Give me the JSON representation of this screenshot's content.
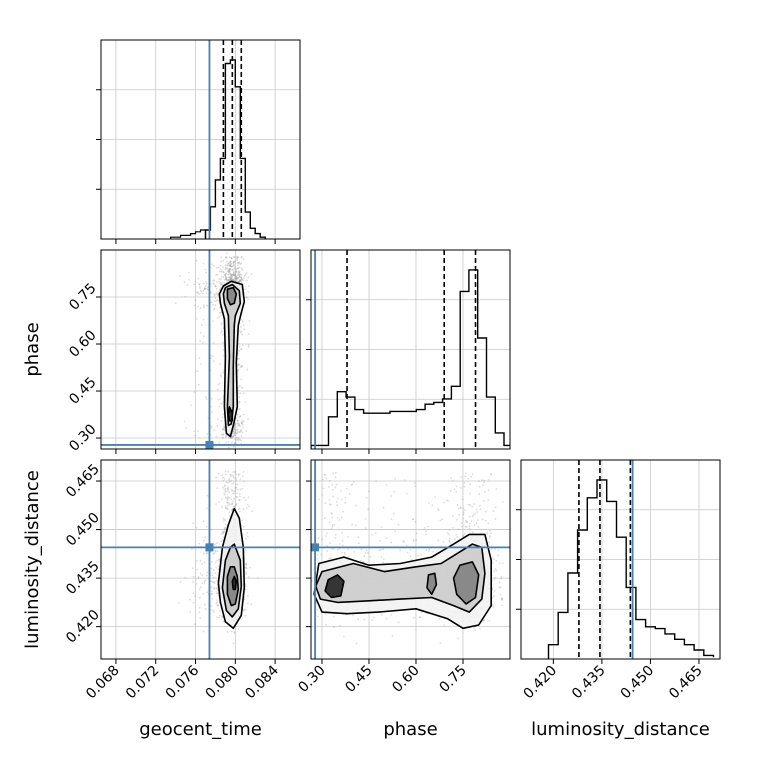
{
  "chart_data": {
    "type": "corner",
    "parameters": [
      "geocent_time",
      "phase",
      "luminosity_distance"
    ],
    "truths": {
      "geocent_time": 0.0774,
      "phase": 0.278,
      "luminosity_distance": 0.4445
    },
    "truth_color": "#4682b4",
    "quantile_lines": {
      "geocent_time": [
        0.0788,
        0.0797,
        0.0806
      ],
      "phase": [
        0.38,
        0.69,
        0.79
      ],
      "luminosity_distance": [
        0.4279,
        0.4344,
        0.4438
      ]
    },
    "axes": {
      "geocent_time": {
        "range": [
          0.0665,
          0.0865
        ],
        "ticks": [
          0.068,
          0.072,
          0.076,
          0.08,
          0.084
        ],
        "tick_labels": [
          "0.068",
          "0.072",
          "0.076",
          "0.080",
          "0.084"
        ]
      },
      "phase": {
        "range": [
          0.265,
          0.9
        ],
        "ticks": [
          0.3,
          0.45,
          0.6,
          0.75
        ],
        "tick_labels": [
          "0.30",
          "0.45",
          "0.60",
          "0.75"
        ]
      },
      "luminosity_distance": {
        "range": [
          0.41,
          0.4715
        ],
        "ticks": [
          0.42,
          0.435,
          0.45,
          0.465
        ],
        "tick_labels": [
          "0.420",
          "0.435",
          "0.450",
          "0.465"
        ]
      }
    },
    "histograms": {
      "geocent_time": {
        "edges": [
          0.077,
          0.0775,
          0.078,
          0.0785,
          0.079,
          0.0795,
          0.08,
          0.0805,
          0.081,
          0.0815,
          0.082,
          0.0825,
          0.083
        ],
        "counts": [
          5,
          18,
          33,
          45,
          98,
          100,
          85,
          45,
          15,
          6,
          3,
          1
        ],
        "left_tail": {
          "edges": [
            0.0735,
            0.074,
            0.0745,
            0.075,
            0.0755,
            0.076,
            0.0765,
            0.077
          ],
          "counts": [
            1,
            1,
            2,
            2,
            3,
            4,
            5
          ]
        }
      },
      "phase": {
        "edges": [
          0.265,
          0.293,
          0.321,
          0.349,
          0.377,
          0.405,
          0.433,
          0.461,
          0.489,
          0.517,
          0.545,
          0.573,
          0.601,
          0.629,
          0.657,
          0.685,
          0.713,
          0.741,
          0.769,
          0.797,
          0.825,
          0.853,
          0.881,
          0.909
        ],
        "counts": [
          2,
          2,
          18,
          32,
          29,
          22,
          20,
          20,
          20,
          21,
          21,
          21,
          22,
          25,
          26,
          28,
          35,
          88,
          100,
          62,
          29,
          9,
          2
        ]
      },
      "luminosity_distance": {
        "edges": [
          0.4185,
          0.4215,
          0.4245,
          0.4275,
          0.4305,
          0.4335,
          0.4365,
          0.4395,
          0.4425,
          0.4455,
          0.4485,
          0.4515,
          0.4545,
          0.4575,
          0.4605,
          0.4635,
          0.4665,
          0.4695
        ],
        "counts": [
          8,
          26,
          48,
          72,
          90,
          100,
          88,
          68,
          40,
          22,
          18,
          17,
          14,
          11,
          8,
          5,
          2,
          1
        ]
      }
    },
    "densities": [
      {
        "x": "geocent_time",
        "y": "phase",
        "contours": [
          [
            [
              0.0788,
              0.785
            ],
            [
              0.0796,
              0.8
            ],
            [
              0.0807,
              0.79
            ],
            [
              0.0809,
              0.735
            ],
            [
              0.0806,
              0.7
            ],
            [
              0.0803,
              0.66
            ],
            [
              0.0801,
              0.54
            ],
            [
              0.0802,
              0.4
            ],
            [
              0.0798,
              0.34
            ],
            [
              0.0795,
              0.305
            ],
            [
              0.0791,
              0.315
            ],
            [
              0.0789,
              0.4
            ],
            [
              0.079,
              0.56
            ],
            [
              0.0789,
              0.68
            ],
            [
              0.0785,
              0.73
            ],
            [
              0.0784,
              0.76
            ]
          ],
          [
            [
              0.079,
              0.78
            ],
            [
              0.0797,
              0.79
            ],
            [
              0.0804,
              0.77
            ],
            [
              0.0805,
              0.73
            ],
            [
              0.08,
              0.69
            ],
            [
              0.0799,
              0.66
            ],
            [
              0.0798,
              0.53
            ],
            [
              0.0798,
              0.4
            ],
            [
              0.0796,
              0.345
            ],
            [
              0.0793,
              0.34
            ],
            [
              0.0792,
              0.4
            ],
            [
              0.0794,
              0.56
            ],
            [
              0.0793,
              0.69
            ],
            [
              0.0789,
              0.73
            ],
            [
              0.0788,
              0.76
            ]
          ],
          [
            [
              0.0792,
              0.775
            ],
            [
              0.0798,
              0.78
            ],
            [
              0.0801,
              0.76
            ],
            [
              0.0799,
              0.73
            ],
            [
              0.0795,
              0.725
            ],
            [
              0.0792,
              0.745
            ]
          ],
          [
            [
              0.0794,
              0.4
            ],
            [
              0.0797,
              0.38
            ],
            [
              0.0797,
              0.355
            ],
            [
              0.0794,
              0.355
            ],
            [
              0.0793,
              0.375
            ]
          ]
        ]
      },
      {
        "x": "geocent_time",
        "y": "luminosity_distance",
        "contours": [
          [
            [
              0.0799,
              0.4565
            ],
            [
              0.0804,
              0.4535
            ],
            [
              0.0808,
              0.4445
            ],
            [
              0.0809,
              0.432
            ],
            [
              0.0806,
              0.4235
            ],
            [
              0.0798,
              0.4195
            ],
            [
              0.079,
              0.4215
            ],
            [
              0.0785,
              0.4275
            ],
            [
              0.0783,
              0.4335
            ],
            [
              0.0787,
              0.4445
            ],
            [
              0.0793,
              0.4515
            ]
          ],
          [
            [
              0.0799,
              0.4455
            ],
            [
              0.0805,
              0.4405
            ],
            [
              0.0806,
              0.4325
            ],
            [
              0.0803,
              0.4255
            ],
            [
              0.0797,
              0.423
            ],
            [
              0.0791,
              0.425
            ],
            [
              0.0787,
              0.432
            ],
            [
              0.079,
              0.4405
            ],
            [
              0.0795,
              0.4445
            ]
          ],
          [
            [
              0.0799,
              0.4385
            ],
            [
              0.0802,
              0.4355
            ],
            [
              0.0803,
              0.4315
            ],
            [
              0.08,
              0.427
            ],
            [
              0.0796,
              0.4265
            ],
            [
              0.0792,
              0.43
            ],
            [
              0.0792,
              0.4355
            ],
            [
              0.0795,
              0.4385
            ]
          ],
          [
            [
              0.0799,
              0.4355
            ],
            [
              0.0801,
              0.434
            ],
            [
              0.08,
              0.4315
            ],
            [
              0.0798,
              0.4315
            ],
            [
              0.0797,
              0.434
            ]
          ]
        ]
      },
      {
        "x": "phase",
        "y": "luminosity_distance",
        "contours": [
          [
            [
              0.29,
              0.4395
            ],
            [
              0.37,
              0.4415
            ],
            [
              0.45,
              0.439
            ],
            [
              0.55,
              0.4395
            ],
            [
              0.65,
              0.4415
            ],
            [
              0.72,
              0.4455
            ],
            [
              0.77,
              0.4485
            ],
            [
              0.82,
              0.4485
            ],
            [
              0.84,
              0.4405
            ],
            [
              0.84,
              0.4265
            ],
            [
              0.8,
              0.4205
            ],
            [
              0.75,
              0.4195
            ],
            [
              0.7,
              0.4225
            ],
            [
              0.6,
              0.4255
            ],
            [
              0.48,
              0.4245
            ],
            [
              0.38,
              0.424
            ],
            [
              0.3,
              0.4245
            ],
            [
              0.275,
              0.43
            ]
          ],
          [
            [
              0.3,
              0.437
            ],
            [
              0.4,
              0.4395
            ],
            [
              0.5,
              0.437
            ],
            [
              0.6,
              0.4385
            ],
            [
              0.68,
              0.4395
            ],
            [
              0.73,
              0.4425
            ],
            [
              0.78,
              0.4455
            ],
            [
              0.81,
              0.4445
            ],
            [
              0.82,
              0.4365
            ],
            [
              0.81,
              0.4285
            ],
            [
              0.77,
              0.4245
            ],
            [
              0.72,
              0.4265
            ],
            [
              0.65,
              0.429
            ],
            [
              0.55,
              0.4285
            ],
            [
              0.45,
              0.428
            ],
            [
              0.35,
              0.4275
            ],
            [
              0.295,
              0.4285
            ],
            [
              0.28,
              0.4325
            ]
          ],
          [
            [
              0.74,
              0.439
            ],
            [
              0.78,
              0.44
            ],
            [
              0.8,
              0.436
            ],
            [
              0.79,
              0.429
            ],
            [
              0.76,
              0.427
            ],
            [
              0.73,
              0.43
            ],
            [
              0.72,
              0.435
            ]
          ],
          [
            [
              0.32,
              0.4345
            ],
            [
              0.35,
              0.436
            ],
            [
              0.37,
              0.434
            ],
            [
              0.36,
              0.4295
            ],
            [
              0.33,
              0.429
            ],
            [
              0.31,
              0.431
            ]
          ],
          [
            [
              0.64,
              0.436
            ],
            [
              0.66,
              0.4365
            ],
            [
              0.665,
              0.433
            ],
            [
              0.65,
              0.43
            ],
            [
              0.635,
              0.432
            ]
          ]
        ]
      }
    ]
  }
}
